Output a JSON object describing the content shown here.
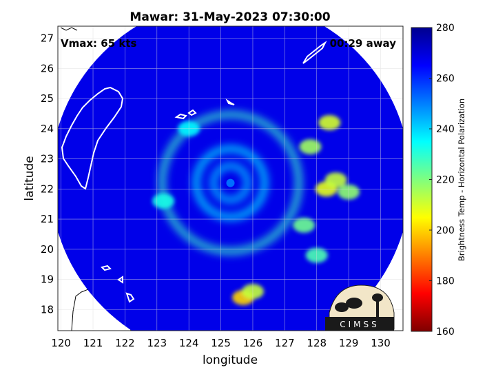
{
  "chart_data": {
    "type": "heatmap",
    "title": "Mawar: 31-May-2023 07:30:00",
    "xlabel": "longitude",
    "ylabel": "latitude",
    "xlim": [
      119.9,
      130.7
    ],
    "ylim": [
      17.3,
      27.4
    ],
    "xticks": [
      "120",
      "121",
      "122",
      "123",
      "124",
      "125",
      "126",
      "127",
      "128",
      "129",
      "130"
    ],
    "yticks": [
      "18",
      "19",
      "20",
      "21",
      "22",
      "23",
      "24",
      "25",
      "26",
      "27"
    ],
    "grid": true,
    "annotations": {
      "vmax": "Vmax: 65 kts",
      "away": "00:29 away"
    },
    "colorbar": {
      "label": "Brightness Temp - Horizontal Polarization",
      "range": [
        160,
        280
      ],
      "ticks": [
        "160",
        "180",
        "200",
        "220",
        "240",
        "260",
        "280"
      ]
    },
    "swath": {
      "center_lon": 125.3,
      "center_lat": 22.3,
      "radius_deg": 5.8,
      "background_temp": 268
    },
    "storm_center": {
      "lon": 125.3,
      "lat": 22.2,
      "value": 252
    },
    "bands": [
      {
        "name": "eyewall",
        "radius": 0.55,
        "value": 240
      },
      {
        "name": "inner-rainband",
        "radius": 1.1,
        "value": 236
      },
      {
        "name": "outer-rainband",
        "radius": 2.2,
        "value": 228
      }
    ],
    "cold_spots": [
      {
        "lon": 128.3,
        "lat": 22.0,
        "value": 208
      },
      {
        "lon": 128.6,
        "lat": 22.3,
        "value": 212
      },
      {
        "lon": 128.4,
        "lat": 24.2,
        "value": 210
      },
      {
        "lon": 129.0,
        "lat": 21.9,
        "value": 218
      },
      {
        "lon": 127.8,
        "lat": 23.4,
        "value": 216
      },
      {
        "lon": 125.7,
        "lat": 18.4,
        "value": 200
      },
      {
        "lon": 126.0,
        "lat": 18.6,
        "value": 212
      },
      {
        "lon": 127.6,
        "lat": 20.8,
        "value": 222
      },
      {
        "lon": 128.0,
        "lat": 19.8,
        "value": 226
      },
      {
        "lon": 123.2,
        "lat": 21.6,
        "value": 232
      },
      {
        "lon": 124.0,
        "lat": 24.0,
        "value": 236
      }
    ],
    "logo": {
      "text": "CIMSS"
    },
    "colors": {
      "scale": [
        "#7f0000",
        "#ff0000",
        "#ff7f00",
        "#ffff00",
        "#7fff7f",
        "#00ffff",
        "#007fff",
        "#0000ff",
        "#00008f"
      ],
      "coastline": "#ffffff",
      "land_outline": "#000000",
      "logo_bg": "#f2e6c8"
    }
  }
}
